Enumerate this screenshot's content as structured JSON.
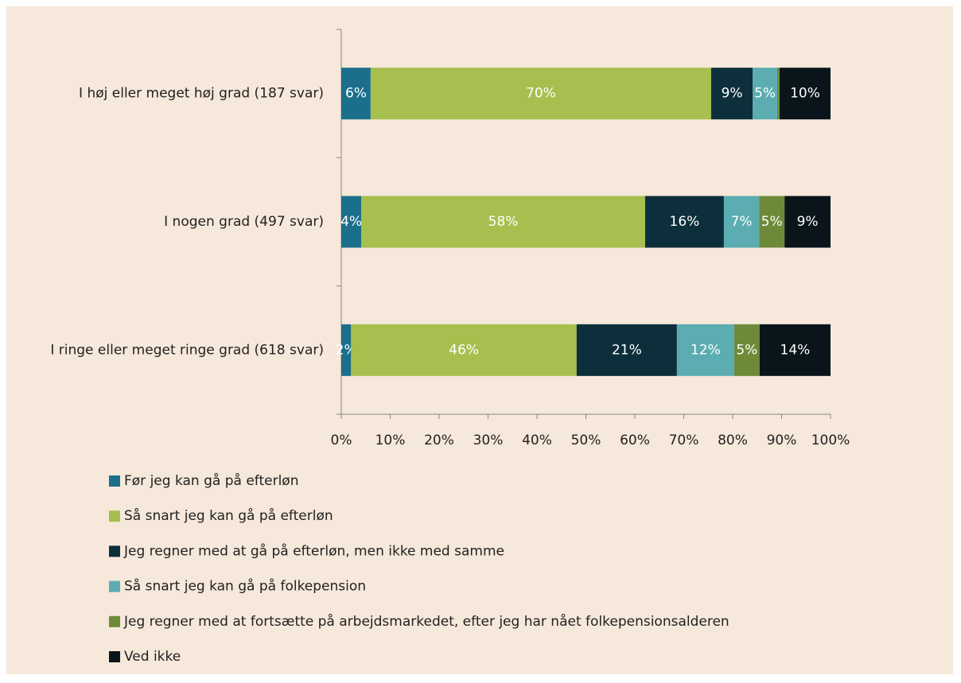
{
  "chart_data": {
    "type": "stacked_barh",
    "categories": [
      "I høj eller meget høj grad (187 svar)",
      "I nogen grad (497 svar)",
      "I ringe eller meget ringe grad (618 svar)"
    ],
    "series": [
      {
        "name": "Før jeg kan gå på efterløn",
        "color": "#1b6f8b",
        "values": [
          6.0,
          4.1,
          2.0
        ],
        "value_labels": [
          "6%",
          "4%",
          "2%"
        ]
      },
      {
        "name": "Så snart jeg kan gå på efterløn",
        "color": "#a6bf4f",
        "values": [
          69.6,
          58.0,
          46.1
        ],
        "value_labels": [
          "70%",
          "58%",
          "46%"
        ]
      },
      {
        "name": "Jeg regner med at gå på efterløn, men ikke med samme",
        "color": "#0d2f3b",
        "values": [
          8.5,
          16.1,
          20.5
        ],
        "value_labels": [
          "9%",
          "16%",
          "21%"
        ]
      },
      {
        "name": "Så snart jeg kan gå på folkepension",
        "color": "#5badb1",
        "values": [
          5.0,
          7.2,
          11.7
        ],
        "value_labels": [
          "5%",
          "7%",
          "12%"
        ]
      },
      {
        "name": "Jeg regner med at fortsætte på arbejdsmarkedet, efter jeg har nået folkepensionsalderen",
        "color": "#6d8a38",
        "values": [
          0.5,
          5.2,
          5.2
        ],
        "value_labels": [
          null,
          "5%",
          "5%"
        ]
      },
      {
        "name": "Ved ikke",
        "color": "#0a151b",
        "values": [
          10.4,
          9.4,
          14.5
        ],
        "value_labels": [
          "10%",
          "9%",
          "14%"
        ]
      }
    ],
    "xlim": [
      0,
      100
    ],
    "xticks": [
      {
        "value": 0,
        "label": "0%"
      },
      {
        "value": 10,
        "label": "10%"
      },
      {
        "value": 20,
        "label": "20%"
      },
      {
        "value": 30,
        "label": "30%"
      },
      {
        "value": 40,
        "label": "40%"
      },
      {
        "value": 50,
        "label": "50%"
      },
      {
        "value": 60,
        "label": "60%"
      },
      {
        "value": 70,
        "label": "70%"
      },
      {
        "value": 80,
        "label": "80%"
      },
      {
        "value": 90,
        "label": "90%"
      },
      {
        "value": 100,
        "label": "100%"
      }
    ],
    "legend": "bottom"
  }
}
